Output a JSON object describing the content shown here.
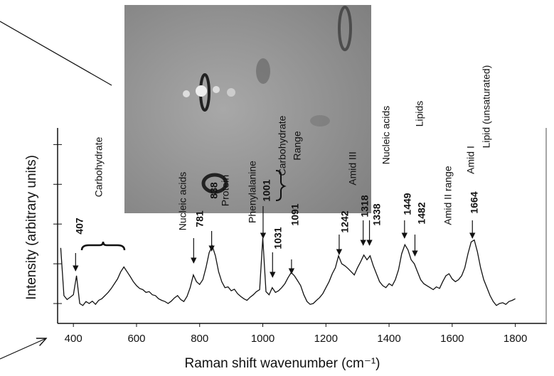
{
  "chart_data": {
    "type": "line",
    "xlabel": "Raman shift wavenumber (cm⁻¹)",
    "ylabel": "Intensity (arbitrary units)",
    "xlim": [
      350,
      1900
    ],
    "xticks": [
      400,
      600,
      800,
      1000,
      1200,
      1400,
      1600,
      1800
    ],
    "ylim": [
      0,
      4.9
    ],
    "yticks": [
      0.5,
      1.5,
      2.5,
      3.5,
      4.5
    ],
    "x": [
      360,
      370,
      380,
      390,
      400,
      410,
      420,
      430,
      440,
      450,
      460,
      470,
      480,
      490,
      500,
      510,
      520,
      530,
      540,
      550,
      560,
      570,
      580,
      590,
      600,
      610,
      620,
      630,
      640,
      650,
      660,
      670,
      680,
      690,
      700,
      710,
      720,
      730,
      740,
      750,
      760,
      770,
      780,
      790,
      800,
      810,
      820,
      830,
      840,
      850,
      860,
      870,
      880,
      890,
      900,
      910,
      920,
      930,
      940,
      950,
      960,
      970,
      980,
      990,
      1000,
      1010,
      1020,
      1030,
      1040,
      1050,
      1060,
      1070,
      1080,
      1090,
      1100,
      1110,
      1120,
      1130,
      1140,
      1150,
      1160,
      1170,
      1180,
      1190,
      1200,
      1210,
      1220,
      1230,
      1240,
      1250,
      1260,
      1270,
      1280,
      1290,
      1300,
      1310,
      1320,
      1330,
      1340,
      1350,
      1360,
      1370,
      1380,
      1390,
      1400,
      1410,
      1420,
      1430,
      1440,
      1450,
      1460,
      1470,
      1480,
      1490,
      1500,
      1510,
      1520,
      1530,
      1540,
      1550,
      1560,
      1570,
      1580,
      1590,
      1600,
      1610,
      1620,
      1630,
      1640,
      1650,
      1660,
      1670,
      1680,
      1690,
      1700,
      1710,
      1720,
      1730,
      1740,
      1750,
      1760,
      1770,
      1780,
      1790,
      1800
    ],
    "series": [
      {
        "color": "#111111",
        "values": [
          1.9,
          0.7,
          0.6,
          0.66,
          0.72,
          1.2,
          0.5,
          0.45,
          0.55,
          0.5,
          0.56,
          0.48,
          0.58,
          0.62,
          0.7,
          0.78,
          0.88,
          1.0,
          1.12,
          1.3,
          1.42,
          1.3,
          1.18,
          1.05,
          0.95,
          0.88,
          0.85,
          0.78,
          0.8,
          0.72,
          0.7,
          0.62,
          0.58,
          0.55,
          0.5,
          0.56,
          0.64,
          0.7,
          0.6,
          0.55,
          0.68,
          0.9,
          1.22,
          1.05,
          0.98,
          1.1,
          1.4,
          1.78,
          1.95,
          1.7,
          1.3,
          1.05,
          0.9,
          0.92,
          0.82,
          0.86,
          0.75,
          0.68,
          0.62,
          0.58,
          0.66,
          0.72,
          0.8,
          0.85,
          2.15,
          0.8,
          0.72,
          0.9,
          0.78,
          0.82,
          0.9,
          1.0,
          1.15,
          1.28,
          1.2,
          1.08,
          0.95,
          0.72,
          0.55,
          0.48,
          0.5,
          0.58,
          0.65,
          0.75,
          0.9,
          1.05,
          1.25,
          1.4,
          1.7,
          1.5,
          1.45,
          1.38,
          1.3,
          1.22,
          1.4,
          1.55,
          1.72,
          1.6,
          1.7,
          1.45,
          1.25,
          1.05,
          0.95,
          0.9,
          1.0,
          0.95,
          1.1,
          1.35,
          1.75,
          1.98,
          1.85,
          1.6,
          1.5,
          1.3,
          1.1,
          1.0,
          0.95,
          0.9,
          0.85,
          0.92,
          0.88,
          1.05,
          1.2,
          1.25,
          1.12,
          1.05,
          1.1,
          1.2,
          1.4,
          1.75,
          2.05,
          2.1,
          1.8,
          1.4,
          1.1,
          0.9,
          0.7,
          0.55,
          0.45,
          0.5,
          0.52,
          0.48,
          0.55,
          0.58,
          0.62
        ]
      }
    ],
    "peak_labels": [
      407,
      781,
      838,
      1001,
      1031,
      1091,
      1242,
      1318,
      1338,
      1449,
      1482,
      1664
    ],
    "annotations": [
      "Carbohydrate",
      "Nucleic acids",
      "Protein",
      "Phenylalanine",
      "Carbohydrate",
      "Range",
      "Amid III",
      "Nucleic acids",
      "Lipids",
      "Amid II  range",
      "Amid I",
      "Lipid (unsaturated)"
    ]
  }
}
